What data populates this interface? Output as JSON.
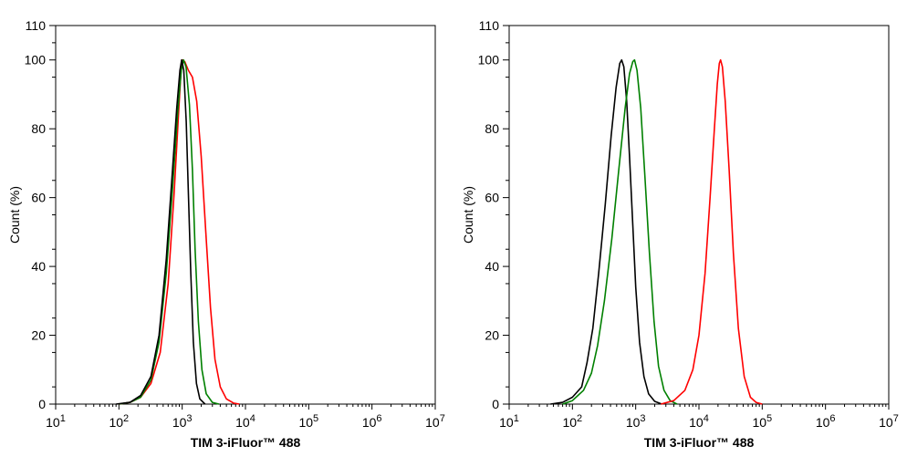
{
  "chart_data": [
    {
      "type": "line",
      "xlabel": "TIM 3-iFluor™ 488",
      "ylabel": "Count  (%)",
      "xscale": "log",
      "xlim": [
        10,
        10000000
      ],
      "ylim": [
        0,
        110
      ],
      "x_ticks": [
        {
          "value": 10,
          "base": "10",
          "exp": "1"
        },
        {
          "value": 100,
          "base": "10",
          "exp": "2"
        },
        {
          "value": 1000,
          "base": "10",
          "exp": "3"
        },
        {
          "value": 10000,
          "base": "10",
          "exp": "4"
        },
        {
          "value": 100000,
          "base": "10",
          "exp": "5"
        },
        {
          "value": 1000000,
          "base": "10",
          "exp": "6"
        },
        {
          "value": 10000000,
          "base": "10",
          "exp": "7"
        }
      ],
      "y_ticks": [
        "0",
        "20",
        "40",
        "60",
        "80",
        "100",
        "110"
      ],
      "grid": false,
      "series": [
        {
          "color": "#ff0000",
          "points": [
            [
              100,
              0
            ],
            [
              150,
              0.5
            ],
            [
              220,
              2
            ],
            [
              320,
              6
            ],
            [
              450,
              15
            ],
            [
              600,
              35
            ],
            [
              750,
              62
            ],
            [
              880,
              85
            ],
            [
              960,
              97
            ],
            [
              1000,
              100
            ],
            [
              1100,
              99.5
            ],
            [
              1250,
              97
            ],
            [
              1450,
              95
            ],
            [
              1700,
              88
            ],
            [
              2000,
              72
            ],
            [
              2400,
              48
            ],
            [
              2800,
              28
            ],
            [
              3300,
              13
            ],
            [
              4000,
              5
            ],
            [
              5000,
              1.5
            ],
            [
              6500,
              0.3
            ],
            [
              8000,
              0
            ]
          ]
        },
        {
          "color": "#008000",
          "points": [
            [
              100,
              0
            ],
            [
              150,
              0.5
            ],
            [
              220,
              2
            ],
            [
              320,
              7
            ],
            [
              430,
              18
            ],
            [
              560,
              38
            ],
            [
              700,
              62
            ],
            [
              850,
              85
            ],
            [
              970,
              97
            ],
            [
              1050,
              100
            ],
            [
              1150,
              98
            ],
            [
              1300,
              87
            ],
            [
              1450,
              68
            ],
            [
              1600,
              45
            ],
            [
              1800,
              24
            ],
            [
              2050,
              10
            ],
            [
              2400,
              3
            ],
            [
              3000,
              0.5
            ],
            [
              3800,
              0
            ]
          ]
        },
        {
          "color": "#000000",
          "points": [
            [
              90,
              0
            ],
            [
              150,
              0.5
            ],
            [
              220,
              2.5
            ],
            [
              320,
              8
            ],
            [
              430,
              20
            ],
            [
              560,
              42
            ],
            [
              690,
              66
            ],
            [
              820,
              86
            ],
            [
              920,
              97
            ],
            [
              980,
              100
            ],
            [
              1060,
              97
            ],
            [
              1160,
              82
            ],
            [
              1260,
              60
            ],
            [
              1370,
              38
            ],
            [
              1500,
              18
            ],
            [
              1680,
              6
            ],
            [
              1900,
              1.5
            ],
            [
              2300,
              0
            ]
          ]
        }
      ]
    },
    {
      "type": "line",
      "xlabel": "TIM 3-iFluor™ 488",
      "ylabel": "Count  (%)",
      "xscale": "log",
      "xlim": [
        10,
        10000000
      ],
      "ylim": [
        0,
        110
      ],
      "x_ticks": [
        {
          "value": 10,
          "base": "10",
          "exp": "1"
        },
        {
          "value": 100,
          "base": "10",
          "exp": "2"
        },
        {
          "value": 1000,
          "base": "10",
          "exp": "3"
        },
        {
          "value": 10000,
          "base": "10",
          "exp": "4"
        },
        {
          "value": 100000,
          "base": "10",
          "exp": "5"
        },
        {
          "value": 1000000,
          "base": "10",
          "exp": "6"
        },
        {
          "value": 10000000,
          "base": "10",
          "exp": "7"
        }
      ],
      "y_ticks": [
        "0",
        "20",
        "40",
        "60",
        "80",
        "100",
        "110"
      ],
      "grid": false,
      "series": [
        {
          "color": "#000000",
          "points": [
            [
              45,
              0
            ],
            [
              70,
              0.5
            ],
            [
              100,
              2
            ],
            [
              140,
              5
            ],
            [
              170,
              12
            ],
            [
              210,
              22
            ],
            [
              260,
              38
            ],
            [
              330,
              58
            ],
            [
              410,
              78
            ],
            [
              490,
              92
            ],
            [
              560,
              99
            ],
            [
              600,
              100
            ],
            [
              650,
              98
            ],
            [
              720,
              88
            ],
            [
              800,
              72
            ],
            [
              900,
              52
            ],
            [
              1000,
              34
            ],
            [
              1150,
              18
            ],
            [
              1350,
              8
            ],
            [
              1600,
              3
            ],
            [
              2000,
              0.8
            ],
            [
              2600,
              0
            ]
          ]
        },
        {
          "color": "#008000",
          "points": [
            [
              70,
              0
            ],
            [
              100,
              1
            ],
            [
              150,
              4
            ],
            [
              200,
              9
            ],
            [
              250,
              17
            ],
            [
              320,
              30
            ],
            [
              420,
              48
            ],
            [
              540,
              68
            ],
            [
              680,
              86
            ],
            [
              800,
              96
            ],
            [
              900,
              99.5
            ],
            [
              960,
              100
            ],
            [
              1050,
              97
            ],
            [
              1200,
              86
            ],
            [
              1400,
              66
            ],
            [
              1650,
              44
            ],
            [
              1950,
              24
            ],
            [
              2300,
              11
            ],
            [
              2800,
              4
            ],
            [
              3500,
              1
            ],
            [
              4500,
              0
            ]
          ]
        },
        {
          "color": "#ff0000",
          "points": [
            [
              2500,
              0
            ],
            [
              4000,
              1
            ],
            [
              6000,
              4
            ],
            [
              8000,
              10
            ],
            [
              10000,
              20
            ],
            [
              12500,
              38
            ],
            [
              15000,
              60
            ],
            [
              17500,
              80
            ],
            [
              19500,
              93
            ],
            [
              21000,
              99
            ],
            [
              22000,
              100
            ],
            [
              23500,
              98
            ],
            [
              26000,
              88
            ],
            [
              30000,
              68
            ],
            [
              35000,
              44
            ],
            [
              42000,
              22
            ],
            [
              52000,
              8
            ],
            [
              65000,
              2
            ],
            [
              80000,
              0.5
            ],
            [
              100000,
              0
            ]
          ]
        }
      ]
    }
  ]
}
